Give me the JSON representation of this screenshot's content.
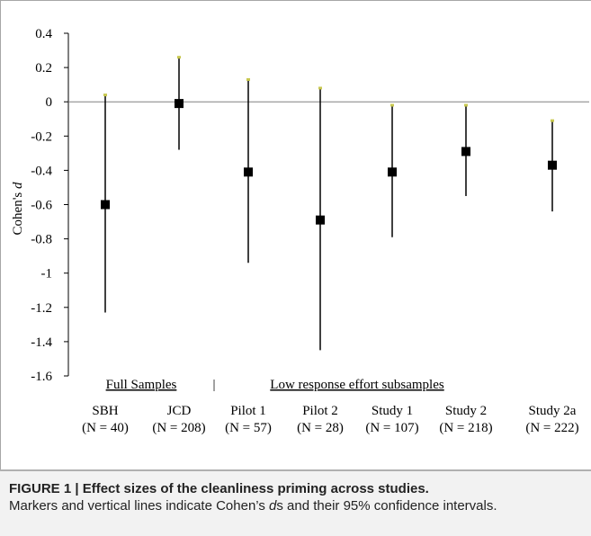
{
  "chart_data": {
    "type": "scatter",
    "ylabel_prefix": "Cohen's ",
    "ylabel_var": "d",
    "ylim": [
      -1.6,
      0.4
    ],
    "yticks": [
      "0.4",
      "0.2",
      "0",
      "-0.2",
      "-0.4",
      "-0.6",
      "-0.8",
      "-1",
      "-1.2",
      "-1.4",
      "-1.6"
    ],
    "ytick_values": [
      0.4,
      0.2,
      0,
      -0.2,
      -0.4,
      -0.6,
      -0.8,
      -1,
      -1.2,
      -1.4,
      -1.6
    ],
    "categories": [
      "SBH",
      "JCD",
      "Pilot 1",
      "Pilot 2",
      "Study 1",
      "Study 2",
      "Study 2a"
    ],
    "sample_sizes": [
      "(N = 40)",
      "(N = 208)",
      "(N = 57)",
      "(N = 28)",
      "(N = 107)",
      "(N = 218)",
      "(N = 222)"
    ],
    "values": [
      -0.6,
      -0.01,
      -0.41,
      -0.69,
      -0.41,
      -0.29,
      -0.37
    ],
    "ci_lower": [
      -1.23,
      -0.28,
      -0.94,
      -1.45,
      -0.79,
      -0.55,
      -0.64
    ],
    "ci_upper": [
      0.04,
      0.26,
      0.13,
      0.08,
      -0.02,
      -0.02,
      -0.11
    ],
    "group_labels": [
      "Full Samples",
      "Low response effort subsamples"
    ],
    "group_separator": "|",
    "colors": {
      "marker": "#000000",
      "axis": "#000000",
      "frame": "#a6a6a6",
      "cap": "#c8c850"
    }
  },
  "caption": {
    "label": "FIGURE 1 | ",
    "title": "Effect sizes of the cleanliness priming across studies.",
    "text_before": "Markers and vertical lines indicate Cohen’s ",
    "text_italic": "d",
    "text_after": "s and their 95% confidence intervals."
  }
}
